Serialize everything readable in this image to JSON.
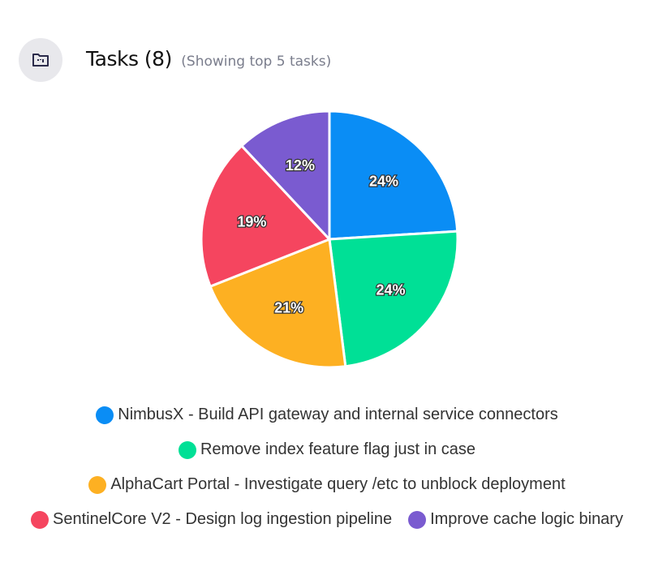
{
  "header": {
    "title": "Tasks (8)",
    "subtitle": "(Showing top 5 tasks)",
    "icon": "folder-kanban-icon"
  },
  "chart_data": {
    "type": "pie",
    "start": "top",
    "direction": "clockwise",
    "categories": [
      "NimbusX - Build API gateway and internal service connectors",
      "Remove index feature flag just in case",
      "AlphaCart Portal - Investigate query /etc to unblock deployment",
      "SentinelCore V2 - Design log ingestion pipeline",
      "Improve cache logic binary"
    ],
    "values": [
      24,
      24,
      21,
      19,
      12
    ],
    "labels": [
      "24%",
      "24%",
      "21%",
      "19%",
      "12%"
    ],
    "colors": [
      "#0a8df5",
      "#00e096",
      "#fdb022",
      "#f5455f",
      "#7a5bd0"
    ],
    "legend_position": "bottom"
  }
}
